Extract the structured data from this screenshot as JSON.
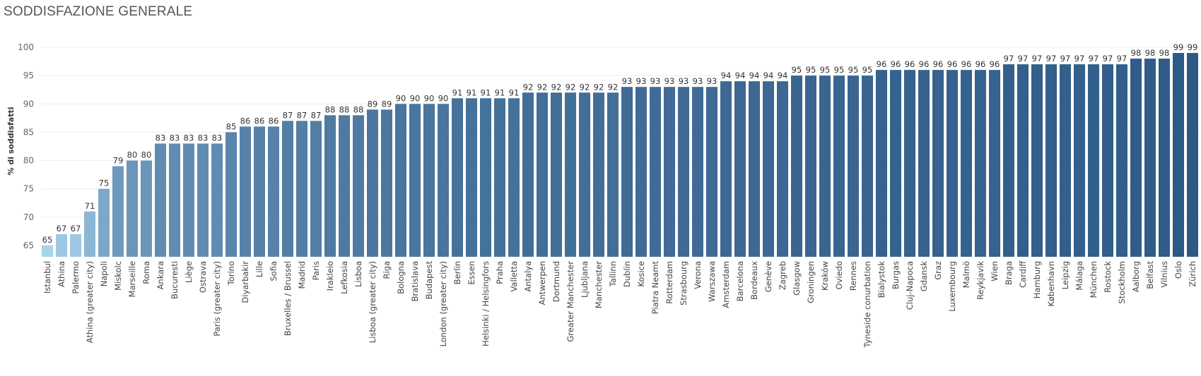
{
  "chart_data": {
    "type": "bar",
    "title": "SODDISFAZIONE GENERALE",
    "xlabel": "",
    "ylabel": "% di soddisfatti",
    "ylim": [
      63,
      101.5
    ],
    "yticks": [
      65,
      70,
      75,
      80,
      85,
      90,
      95,
      100
    ],
    "grid": true,
    "color_scale": [
      "#a9d2ed",
      "#2c5986"
    ],
    "categories": [
      "Istanbul",
      "Athina",
      "Palermo",
      "Athina (greater city)",
      "Napoli",
      "Miskolc",
      "Marseille",
      "Roma",
      "Ankara",
      "Bucuresti",
      "Liège",
      "Ostrava",
      "Paris (greater city)",
      "Torino",
      "Diyarbakir",
      "Lille",
      "Sofia",
      "Bruxelles / Brussel",
      "Madrid",
      "Paris",
      "Irakleio",
      "Lefkosia",
      "Lisboa",
      "Lisboa (greater city)",
      "Riga",
      "Bologna",
      "Bratislava",
      "Budapest",
      "London (greater city)",
      "Berlin",
      "Essen",
      "Helsinki / Helsingfors",
      "Praha",
      "Valletta",
      "Antalya",
      "Antwerpen",
      "Dortmund",
      "Greater Manchester",
      "Ljubljana",
      "Manchester",
      "Tallinn",
      "Dublin",
      "Kosice",
      "Piatra Neamt",
      "Rotterdam",
      "Strasbourg",
      "Verona",
      "Warszawa",
      "Amsterdam",
      "Barcelona",
      "Bordeaux",
      "Genève",
      "Zagreb",
      "Glasgow",
      "Groningen",
      "Kraków",
      "Oviedo",
      "Rennes",
      "Tyneside conurbation",
      "Bialystok",
      "Burgas",
      "Cluj-Napoca",
      "Gdansk",
      "Graz",
      "Luxembourg",
      "Malmö",
      "Reykjavik",
      "Wien",
      "Braga",
      "Cardiff",
      "Hamburg",
      "København",
      "Leipzig",
      "Málaga",
      "München",
      "Rostock",
      "Stockholm",
      "Aalborg",
      "Belfast",
      "Vilnius",
      "Oslo",
      "Zürich"
    ],
    "values": [
      65,
      67,
      67,
      71,
      75,
      79,
      80,
      80,
      83,
      83,
      83,
      83,
      83,
      85,
      86,
      86,
      86,
      87,
      87,
      87,
      88,
      88,
      88,
      89,
      89,
      90,
      90,
      90,
      90,
      91,
      91,
      91,
      91,
      91,
      92,
      92,
      92,
      92,
      92,
      92,
      92,
      93,
      93,
      93,
      93,
      93,
      93,
      93,
      94,
      94,
      94,
      94,
      94,
      95,
      95,
      95,
      95,
      95,
      95,
      96,
      96,
      96,
      96,
      96,
      96,
      96,
      96,
      96,
      97,
      97,
      97,
      97,
      97,
      97,
      97,
      97,
      97,
      98,
      98,
      98,
      99,
      99
    ]
  }
}
